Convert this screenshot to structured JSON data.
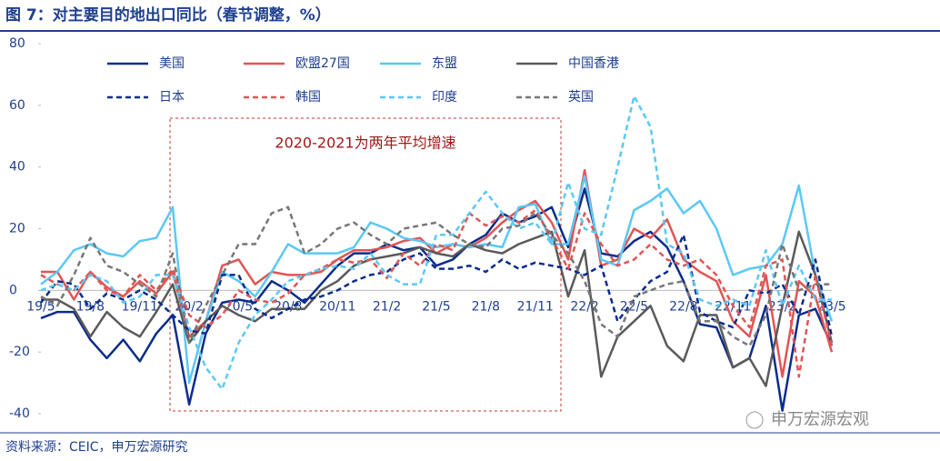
{
  "chart_data": {
    "type": "line",
    "title": "图 7：对主要目的地出口同比（春节调整，%）",
    "source": "资料来源：CEIC，申万宏源研究",
    "watermark": "申万宏源宏观",
    "annotation": "2020-2021为两年平均增速",
    "categories": [
      "19/5",
      null,
      null,
      "19/8",
      null,
      null,
      "19/11",
      null,
      null,
      "20/2",
      null,
      null,
      "20/5",
      null,
      null,
      "20/8",
      null,
      null,
      "20/11",
      null,
      null,
      "21/2",
      null,
      null,
      "21/5",
      null,
      null,
      "21/8",
      null,
      null,
      "21/11",
      null,
      null,
      "22/2",
      null,
      null,
      "22/5",
      null,
      null,
      "22/8",
      null,
      null,
      "22/11",
      null,
      null,
      "23/2",
      null,
      null,
      "23/5"
    ],
    "ylim": [
      -40,
      80
    ],
    "yticks": [
      -40,
      -20,
      0,
      20,
      40,
      60,
      80
    ],
    "series": [
      {
        "name": "美国",
        "color": "#0b2c8c",
        "dash": false,
        "values": [
          -9,
          -7,
          -7,
          -16,
          -22,
          -16,
          -23,
          -14,
          -8,
          -37,
          -14,
          -4,
          -3,
          -4,
          3,
          0,
          -4,
          2,
          8,
          12,
          12,
          15,
          13,
          14,
          8,
          10,
          15,
          18,
          25,
          22,
          24,
          27,
          14,
          33,
          12,
          11,
          16,
          19,
          14,
          3,
          -11,
          -12,
          -25,
          -22,
          -5,
          -39,
          -8,
          -6,
          -18
        ]
      },
      {
        "name": "欧盟27国",
        "color": "#e05555",
        "dash": false,
        "values": [
          6,
          6,
          -3,
          6,
          1,
          -2,
          3,
          -1,
          6,
          -15,
          -10,
          8,
          10,
          2,
          6,
          5,
          5,
          6,
          10,
          13,
          13,
          14,
          16,
          17,
          12,
          15,
          14,
          17,
          22,
          26,
          29,
          22,
          10,
          39,
          8,
          10,
          20,
          17,
          23,
          10,
          6,
          3,
          -10,
          -15,
          5,
          -28,
          3,
          -2,
          -20
        ]
      },
      {
        "name": "东盟",
        "color": "#5bc8f5",
        "dash": false,
        "values": [
          2,
          6,
          13,
          15,
          12,
          11,
          16,
          17,
          27,
          -30,
          -10,
          6,
          3,
          -2,
          6,
          15,
          12,
          12,
          12,
          14,
          22,
          20,
          17,
          16,
          14,
          15,
          14,
          15,
          14,
          27,
          28,
          15,
          15,
          37,
          10,
          8,
          26,
          29,
          33,
          25,
          29,
          20,
          5,
          7,
          8,
          15,
          34,
          5,
          -10
        ]
      },
      {
        "name": "中国香港",
        "color": "#5a5a5a",
        "dash": false,
        "values": [
          -3,
          -3,
          -6,
          -15,
          -7,
          -12,
          -15,
          -7,
          2,
          -17,
          -10,
          -5,
          -8,
          -10,
          -6,
          -6,
          -6,
          0,
          3,
          8,
          10,
          11,
          12,
          14,
          12,
          11,
          15,
          13,
          12,
          15,
          17,
          19,
          -2,
          13,
          -28,
          -15,
          -10,
          -5,
          -18,
          -23,
          -8,
          -8,
          -25,
          -22,
          -31,
          -5,
          19,
          5,
          -17
        ]
      },
      {
        "name": "日本",
        "color": "#0b2c8c",
        "dash": true,
        "values": [
          -4,
          3,
          2,
          -6,
          -1,
          -3,
          0,
          -3,
          -8,
          -13,
          -14,
          5,
          5,
          -6,
          -9,
          -6,
          -3,
          -2,
          0,
          3,
          5,
          6,
          10,
          12,
          7,
          7,
          8,
          6,
          10,
          7,
          9,
          8,
          7,
          5,
          8,
          -10,
          -3,
          3,
          6,
          18,
          -7,
          -10,
          -12,
          0,
          -1,
          2,
          -8,
          10,
          -15
        ]
      },
      {
        "name": "韩国",
        "color": "#e05555",
        "dash": true,
        "values": [
          5,
          2,
          0,
          6,
          0,
          -2,
          5,
          0,
          7,
          -8,
          -12,
          -8,
          0,
          -3,
          -4,
          -1,
          5,
          7,
          10,
          9,
          10,
          4,
          12,
          8,
          15,
          13,
          25,
          21,
          24,
          22,
          26,
          17,
          7,
          25,
          15,
          8,
          10,
          15,
          10,
          8,
          10,
          5,
          -5,
          -12,
          8,
          10,
          -28,
          5,
          -18
        ]
      },
      {
        "name": "印度",
        "color": "#5bc8f5",
        "dash": true,
        "values": [
          0,
          2,
          0,
          5,
          3,
          -4,
          -2,
          5,
          5,
          -12,
          -25,
          -32,
          -17,
          -8,
          -3,
          3,
          5,
          7,
          8,
          7,
          12,
          5,
          2,
          2,
          18,
          18,
          25,
          32,
          25,
          20,
          22,
          15,
          35,
          20,
          18,
          40,
          63,
          53,
          15,
          12,
          -3,
          -5,
          -3,
          -5,
          13,
          -5,
          8,
          -3,
          -3
        ]
      },
      {
        "name": "英国",
        "color": "#777777",
        "dash": true,
        "values": [
          -2,
          -5,
          5,
          17,
          8,
          6,
          2,
          -2,
          12,
          -17,
          -5,
          5,
          15,
          15,
          25,
          27,
          12,
          15,
          20,
          22,
          18,
          15,
          20,
          21,
          22,
          18,
          15,
          14,
          20,
          21,
          25,
          18,
          12,
          3,
          -11,
          -15,
          -2,
          0,
          2,
          3,
          -10,
          -10,
          -15,
          -18,
          -8,
          15,
          0,
          2,
          2
        ]
      }
    ]
  }
}
